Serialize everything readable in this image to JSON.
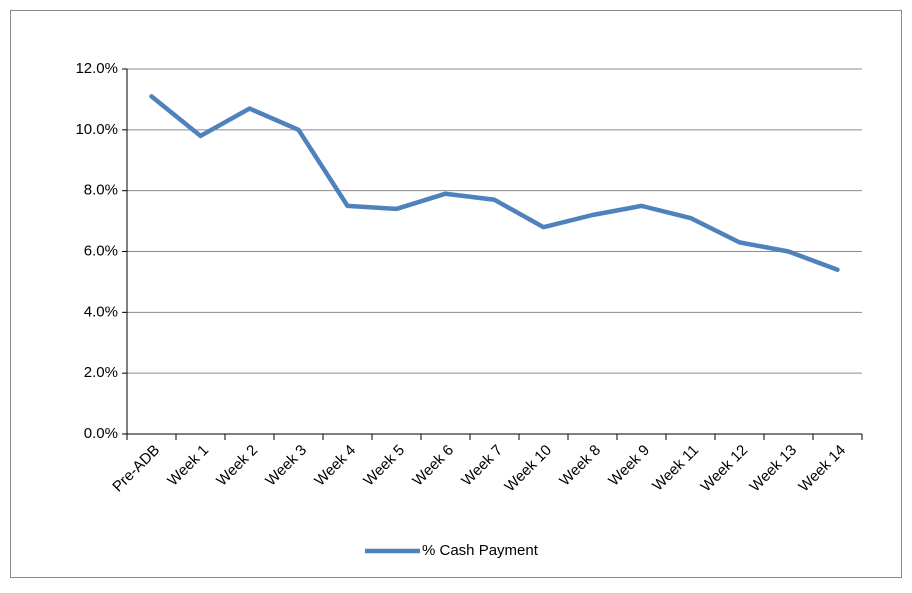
{
  "chart_data": {
    "type": "line",
    "categories": [
      "Pre-ADB",
      "Week 1",
      "Week 2",
      "Week 3",
      "Week 4",
      "Week 5",
      "Week 6",
      "Week 7",
      "Week 10",
      "Week 8",
      "Week 9",
      "Week 11",
      "Week 12",
      "Week 13",
      "Week 14"
    ],
    "series": [
      {
        "name": "% Cash Payment",
        "color": "#4f81bd",
        "values": [
          11.1,
          9.8,
          10.7,
          10.0,
          7.5,
          7.4,
          7.9,
          7.7,
          6.8,
          7.2,
          7.5,
          7.1,
          6.3,
          6.0,
          5.4
        ]
      }
    ],
    "ylim": [
      0,
      12
    ],
    "yticks": [
      {
        "value": 0,
        "label": "0.0%"
      },
      {
        "value": 2,
        "label": "2.0%"
      },
      {
        "value": 4,
        "label": "4.0%"
      },
      {
        "value": 6,
        "label": "6.0%"
      },
      {
        "value": 8,
        "label": "8.0%"
      },
      {
        "value": 10,
        "label": "10.0%"
      },
      {
        "value": 12,
        "label": "12.0%"
      }
    ],
    "grid": true,
    "legend": "bottom"
  }
}
